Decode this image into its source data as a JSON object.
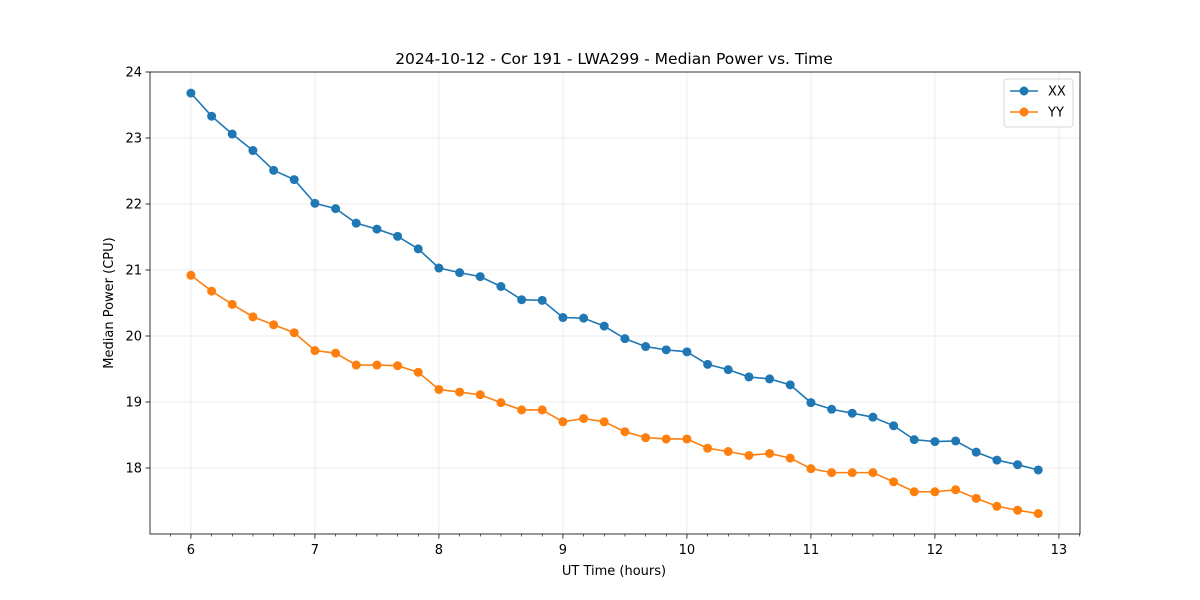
{
  "chart_data": {
    "type": "line",
    "title": "2024-10-12 - Cor 191 - LWA299 - Median Power vs. Time",
    "xlabel": "UT Time (hours)",
    "ylabel": "Median Power (CPU)",
    "xlim": [
      5.67,
      13.17
    ],
    "ylim": [
      17.0,
      24.0
    ],
    "xticks": [
      6,
      7,
      8,
      9,
      10,
      11,
      12,
      13
    ],
    "yticks": [
      18,
      19,
      20,
      21,
      22,
      23,
      24
    ],
    "grid": true,
    "legend_position": "top-right",
    "x": [
      6.0,
      6.167,
      6.333,
      6.5,
      6.667,
      6.833,
      7.0,
      7.167,
      7.333,
      7.5,
      7.667,
      7.833,
      8.0,
      8.167,
      8.333,
      8.5,
      8.667,
      8.833,
      9.0,
      9.167,
      9.333,
      9.5,
      9.667,
      9.833,
      10.0,
      10.167,
      10.333,
      10.5,
      10.667,
      10.833,
      11.0,
      11.167,
      11.333,
      11.5,
      11.667,
      11.833,
      12.0,
      12.167,
      12.333,
      12.5,
      12.667,
      12.833
    ],
    "series": [
      {
        "name": "XX",
        "color": "#1f77b4",
        "values": [
          23.68,
          23.33,
          23.06,
          22.81,
          22.51,
          22.37,
          22.01,
          21.93,
          21.71,
          21.62,
          21.51,
          21.32,
          21.03,
          20.96,
          20.9,
          20.75,
          20.55,
          20.54,
          20.28,
          20.27,
          20.15,
          19.96,
          19.84,
          19.79,
          19.76,
          19.57,
          19.49,
          19.38,
          19.35,
          19.26,
          18.99,
          18.89,
          18.83,
          18.77,
          18.64,
          18.43,
          18.4,
          18.41,
          18.24,
          18.12,
          18.05,
          17.97
        ]
      },
      {
        "name": "YY",
        "color": "#ff7f0e",
        "values": [
          20.92,
          20.68,
          20.48,
          20.29,
          20.17,
          20.05,
          19.78,
          19.74,
          19.56,
          19.56,
          19.55,
          19.45,
          19.19,
          19.15,
          19.11,
          18.99,
          18.88,
          18.88,
          18.7,
          18.75,
          18.7,
          18.55,
          18.46,
          18.44,
          18.44,
          18.3,
          18.25,
          18.19,
          18.22,
          18.15,
          17.99,
          17.93,
          17.93,
          17.93,
          17.79,
          17.64,
          17.64,
          17.67,
          17.54,
          17.42,
          17.36,
          17.31
        ]
      }
    ]
  }
}
